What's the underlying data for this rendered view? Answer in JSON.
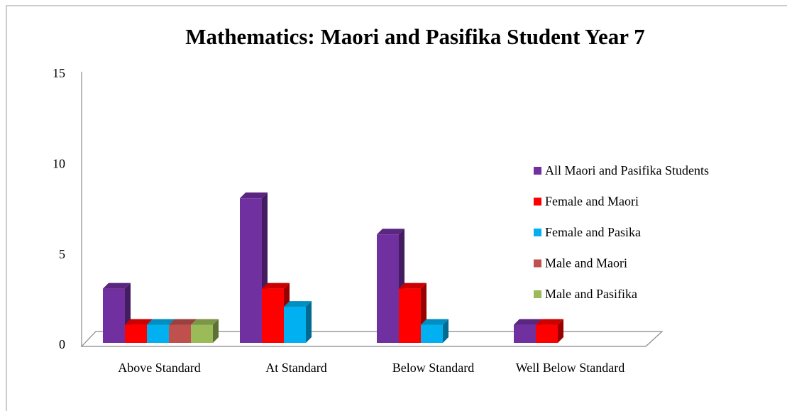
{
  "chart_data": {
    "type": "bar3d",
    "title": "Mathematics: Maori and Pasifika Student Year 7",
    "categories": [
      "Above Standard",
      "At Standard",
      "Below Standard",
      "Well Below Standard"
    ],
    "series": [
      {
        "name": "All Maori and Pasifika Students",
        "color": "#7030a0",
        "values": [
          3,
          8,
          6,
          1
        ]
      },
      {
        "name": "Female and Maori",
        "color": "#ff0000",
        "values": [
          1,
          3,
          3,
          1
        ]
      },
      {
        "name": "Female and Pasika",
        "color": "#00b0f0",
        "values": [
          1,
          2,
          1,
          null
        ]
      },
      {
        "name": "Male and Maori",
        "color": "#c0504d",
        "values": [
          1,
          null,
          null,
          null
        ]
      },
      {
        "name": "Male and Pasifika",
        "color": "#9bbb59",
        "values": [
          1,
          null,
          null,
          null
        ]
      }
    ],
    "ylim": [
      0,
      15
    ],
    "yticks": [
      0,
      5,
      10,
      15
    ],
    "legend": "right"
  }
}
